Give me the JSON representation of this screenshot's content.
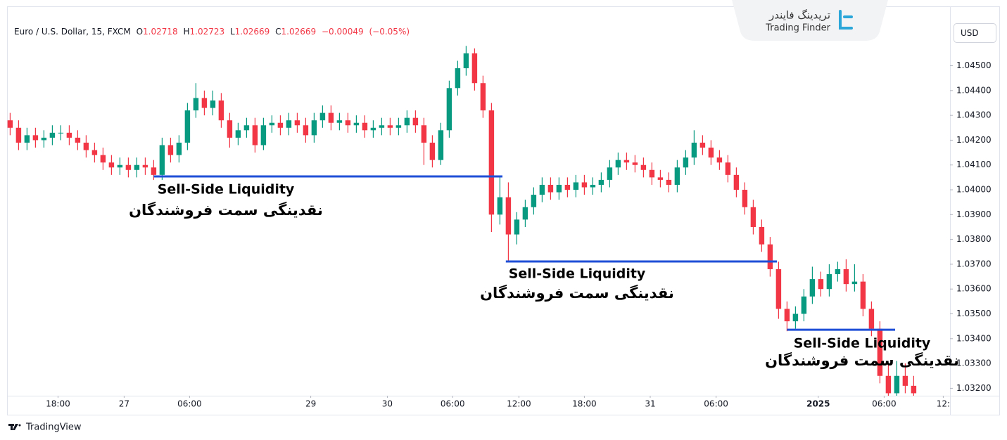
{
  "chart_data": {
    "type": "candlestick",
    "title": "Euro / U.S. Dollar, 15, FXCM",
    "quote": {
      "open_label": "O",
      "open": 1.02718,
      "high_label": "H",
      "high": 1.02723,
      "low_label": "L",
      "low": 1.02669,
      "close_label": "C",
      "close": 1.02669,
      "change": "−0.00049",
      "change_pct": "(−0.05%)"
    },
    "currency": "USD",
    "brand_fa": "تریدینگ فایندر",
    "brand_en": "Trading Finder",
    "footer": "TradingView",
    "up_color": "#089981",
    "down_color": "#f23645",
    "open": [
      1.0428,
      1.0425,
      1.0419,
      1.0422,
      1.042,
      1.0421,
      1.0423,
      1.0423,
      1.0421,
      1.0419,
      1.0416,
      1.0414,
      1.0411,
      1.0409,
      1.041,
      1.0408,
      1.041,
      1.0409,
      1.0406,
      1.0418,
      1.0414,
      1.0419,
      1.0432,
      1.0437,
      1.0433,
      1.0436,
      1.0428,
      1.0421,
      1.0424,
      1.0426,
      1.0418,
      1.0426,
      1.0427,
      1.0425,
      1.0428,
      1.0426,
      1.0422,
      1.0428,
      1.0431,
      1.0427,
      1.0428,
      1.0426,
      1.0427,
      1.0424,
      1.0425,
      1.0426,
      1.0425,
      1.0426,
      1.0429,
      1.0426,
      1.0419,
      1.0412,
      1.0424,
      1.0441,
      1.0449,
      1.0455,
      1.0443,
      1.0432,
      1.039,
      1.0397,
      1.0382,
      1.0388,
      1.0393,
      1.0398,
      1.0402,
      1.0399,
      1.0402,
      1.04,
      1.0403,
      1.0401,
      1.0402,
      1.0404,
      1.0409,
      1.0412,
      1.0411,
      1.041,
      1.0408,
      1.0405,
      1.0404,
      1.0402,
      1.0409,
      1.0413,
      1.0419,
      1.0417,
      1.0413,
      1.0411,
      1.0406,
      1.04,
      1.0393,
      1.0385,
      1.0378,
      1.0368,
      1.0352,
      1.0347,
      1.035,
      1.0357,
      1.0364,
      1.036,
      1.0366,
      1.0368,
      1.0362,
      1.0363,
      1.0352,
      1.0344,
      1.0325,
      1.0318,
      1.0325,
      1.0321
    ],
    "high": [
      1.0431,
      1.0428,
      1.0425,
      1.0425,
      1.0424,
      1.0426,
      1.0426,
      1.0426,
      1.0424,
      1.0422,
      1.0419,
      1.0417,
      1.0414,
      1.0413,
      1.0413,
      1.0413,
      1.0413,
      1.0412,
      1.0421,
      1.0421,
      1.0422,
      1.0435,
      1.0443,
      1.044,
      1.044,
      1.0439,
      1.0431,
      1.0427,
      1.0429,
      1.0429,
      1.0429,
      1.043,
      1.043,
      1.0431,
      1.0431,
      1.0429,
      1.0431,
      1.0434,
      1.0434,
      1.0431,
      1.0431,
      1.043,
      1.043,
      1.0428,
      1.0429,
      1.0429,
      1.0429,
      1.0432,
      1.0432,
      1.0429,
      1.0422,
      1.0427,
      1.0444,
      1.0452,
      1.0458,
      1.0457,
      1.0446,
      1.0435,
      1.0405,
      1.0403,
      1.0391,
      1.0396,
      1.0401,
      1.0405,
      1.0405,
      1.0405,
      1.0405,
      1.0406,
      1.0406,
      1.0405,
      1.0407,
      1.0412,
      1.0415,
      1.0415,
      1.0414,
      1.0413,
      1.0411,
      1.0408,
      1.0407,
      1.0412,
      1.0416,
      1.0424,
      1.0422,
      1.042,
      1.0416,
      1.0414,
      1.0409,
      1.0403,
      1.0396,
      1.0388,
      1.0381,
      1.0371,
      1.0355,
      1.0353,
      1.036,
      1.0369,
      1.0367,
      1.037,
      1.0371,
      1.0372,
      1.037,
      1.0366,
      1.0355,
      1.0347,
      1.033,
      1.0331,
      1.033,
      1.0325
    ],
    "low": [
      1.0422,
      1.0416,
      1.0416,
      1.0417,
      1.0417,
      1.0418,
      1.042,
      1.0418,
      1.0416,
      1.0413,
      1.0411,
      1.0408,
      1.0406,
      1.0406,
      1.0405,
      1.0405,
      1.0406,
      1.0404,
      1.0404,
      1.0411,
      1.0411,
      1.0416,
      1.0429,
      1.043,
      1.043,
      1.0425,
      1.0417,
      1.0418,
      1.0421,
      1.0415,
      1.0416,
      1.0423,
      1.0422,
      1.0422,
      1.0423,
      1.0419,
      1.0419,
      1.0425,
      1.0424,
      1.0424,
      1.0423,
      1.0423,
      1.0421,
      1.0421,
      1.0422,
      1.0422,
      1.0422,
      1.0423,
      1.0423,
      1.041,
      1.0409,
      1.041,
      1.0421,
      1.0438,
      1.0446,
      1.044,
      1.0429,
      1.0383,
      1.0386,
      1.0371,
      1.0378,
      1.0385,
      1.039,
      1.0395,
      1.0396,
      1.0396,
      1.0397,
      1.0397,
      1.0398,
      1.0398,
      1.0399,
      1.0401,
      1.0406,
      1.0408,
      1.0407,
      1.0405,
      1.0402,
      1.0401,
      1.0399,
      1.0399,
      1.0406,
      1.041,
      1.0414,
      1.041,
      1.0408,
      1.0403,
      1.0397,
      1.039,
      1.0382,
      1.0375,
      1.0365,
      1.0348,
      1.0343,
      1.0344,
      1.0347,
      1.0354,
      1.0357,
      1.0357,
      1.0363,
      1.0359,
      1.0359,
      1.0349,
      1.0341,
      1.0322,
      1.0316,
      1.0316,
      1.0318,
      1.0316
    ],
    "close": [
      1.0425,
      1.0419,
      1.0422,
      1.042,
      1.0421,
      1.0423,
      1.0423,
      1.0421,
      1.0419,
      1.0416,
      1.0414,
      1.0411,
      1.0409,
      1.041,
      1.0408,
      1.041,
      1.0409,
      1.0406,
      1.0418,
      1.0414,
      1.0419,
      1.0432,
      1.0437,
      1.0433,
      1.0436,
      1.0428,
      1.0421,
      1.0424,
      1.0426,
      1.0418,
      1.0426,
      1.0427,
      1.0425,
      1.0428,
      1.0426,
      1.0422,
      1.0428,
      1.0431,
      1.0427,
      1.0428,
      1.0426,
      1.0427,
      1.0424,
      1.0425,
      1.0426,
      1.0425,
      1.0426,
      1.0429,
      1.0426,
      1.0419,
      1.0412,
      1.0424,
      1.0441,
      1.0449,
      1.0455,
      1.0443,
      1.0432,
      1.039,
      1.0397,
      1.0382,
      1.0388,
      1.0393,
      1.0398,
      1.0402,
      1.0399,
      1.0402,
      1.04,
      1.0403,
      1.0401,
      1.0402,
      1.0404,
      1.0409,
      1.0412,
      1.0411,
      1.041,
      1.0408,
      1.0405,
      1.0404,
      1.0402,
      1.0409,
      1.0413,
      1.0419,
      1.0417,
      1.0413,
      1.0411,
      1.0406,
      1.04,
      1.0393,
      1.0385,
      1.0378,
      1.0368,
      1.0352,
      1.0347,
      1.035,
      1.0357,
      1.0364,
      1.036,
      1.0366,
      1.0368,
      1.0362,
      1.0363,
      1.0352,
      1.0344,
      1.0325,
      1.0318,
      1.0325,
      1.0321,
      1.0318
    ],
    "xlim": [
      -1.2,
      111.3
    ],
    "xticks": [
      {
        "value": 5.67,
        "label": "18:00"
      },
      {
        "value": 13.5,
        "label": "27"
      },
      {
        "value": 21.25,
        "label": "06:00"
      },
      {
        "value": 35.6,
        "label": "29"
      },
      {
        "value": 44.67,
        "label": "30"
      },
      {
        "value": 52.4,
        "label": "06:00"
      },
      {
        "value": 60.25,
        "label": "12:00"
      },
      {
        "value": 68,
        "label": "18:00"
      },
      {
        "value": 75.8,
        "label": "31"
      },
      {
        "value": 83.6,
        "label": "06:00"
      },
      {
        "value": 95.7,
        "label": "2025"
      },
      {
        "value": 103.5,
        "label": "06:00"
      },
      {
        "value": 110.5,
        "label": "12:"
      }
    ],
    "ylim": [
      1.0317,
      1.0468
    ],
    "yticks": [
      {
        "value": 1.045,
        "label": "1.04500"
      },
      {
        "value": 1.044,
        "label": "1.04400"
      },
      {
        "value": 1.043,
        "label": "1.04300"
      },
      {
        "value": 1.042,
        "label": "1.04200"
      },
      {
        "value": 1.041,
        "label": "1.04100"
      },
      {
        "value": 1.04,
        "label": "1.04000"
      },
      {
        "value": 1.039,
        "label": "1.03900"
      },
      {
        "value": 1.038,
        "label": "1.03800"
      },
      {
        "value": 1.037,
        "label": "1.03700"
      },
      {
        "value": 1.036,
        "label": "1.03600"
      },
      {
        "value": 1.035,
        "label": "1.03500"
      },
      {
        "value": 1.034,
        "label": "1.03400"
      },
      {
        "value": 1.033,
        "label": "1.03300"
      },
      {
        "value": 1.032,
        "label": "1.03200"
      }
    ],
    "level_color": "#1f4fd6",
    "levels": [
      {
        "start": 17,
        "end": 58.3,
        "value": 1.04054,
        "label": "Sell-Side Liquidity",
        "label_fa": "نقدینگی سمت فروشندگان"
      },
      {
        "start": 58.7,
        "end": 90.8,
        "value": 1.03711,
        "label": "Sell-Side Liquidity",
        "label_fa": "نقدینگی سمت فروشندگان"
      },
      {
        "start": 92,
        "end": 104.8,
        "value": 1.03436,
        "label": "Sell-Side Liquidity",
        "label_fa": "نقدینگی سمت فروشندگان"
      }
    ]
  }
}
